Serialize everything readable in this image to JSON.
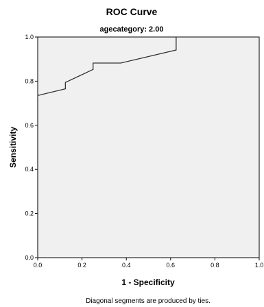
{
  "chart_data": {
    "type": "line",
    "title": "ROC Curve",
    "subtitle": "agecategory: 2.00",
    "xlabel": "1 - Specificity",
    "ylabel": "Sensitivity",
    "xlim": [
      0,
      1
    ],
    "ylim": [
      0,
      1
    ],
    "x_ticks": [
      "0.0",
      "0.2",
      "0.4",
      "0.6",
      "0.8",
      "1.0"
    ],
    "y_ticks": [
      "0.0",
      "0.2",
      "0.4",
      "0.6",
      "0.8",
      "1.0"
    ],
    "grid": false,
    "footnote": "Diagonal segments are produced by ties.",
    "colors": {
      "plot_background": "#f0f0f0",
      "line": "#333333",
      "axis": "#000000"
    },
    "series": [
      {
        "x": [
          0.0,
          0.0,
          0.125,
          0.125,
          0.25,
          0.25,
          0.375,
          0.625,
          0.625,
          1.0
        ],
        "y": [
          0.0,
          0.735,
          0.765,
          0.794,
          0.853,
          0.882,
          0.882,
          0.941,
          1.0,
          1.0
        ]
      }
    ]
  }
}
